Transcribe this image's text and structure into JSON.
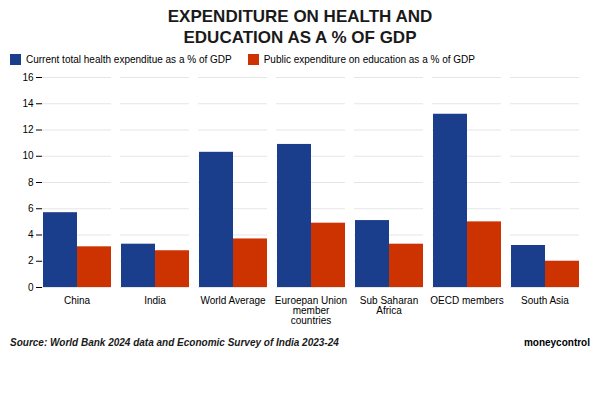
{
  "chart_data": {
    "type": "bar",
    "title": "EXPENDITURE ON HEALTH AND\nEDUCATION AS A % OF GDP",
    "categories": [
      "China",
      "India",
      "World Average",
      "Euroepan Union\nmember\ncountries",
      "Sub Saharan\nAfrica",
      "OECD members",
      "South Asia"
    ],
    "series": [
      {
        "name": "Current total health expenditue as a % of GDP",
        "color": "#1a3e8c",
        "values": [
          5.7,
          3.3,
          10.3,
          10.9,
          5.1,
          13.2,
          3.2
        ]
      },
      {
        "name": "Public expenditure on education as a % of GDP",
        "color": "#cc3300",
        "values": [
          3.1,
          2.8,
          3.7,
          4.9,
          3.3,
          5.0,
          2.0
        ]
      }
    ],
    "ylim": [
      0,
      16
    ],
    "yticks": [
      0,
      2,
      4,
      6,
      8,
      10,
      12,
      14,
      16
    ],
    "grid": true,
    "legend": "upper left",
    "annotations": [
      "Source: World Bank 2024 data and Economic Survey of India 2023-24",
      "moneycontrol"
    ]
  }
}
